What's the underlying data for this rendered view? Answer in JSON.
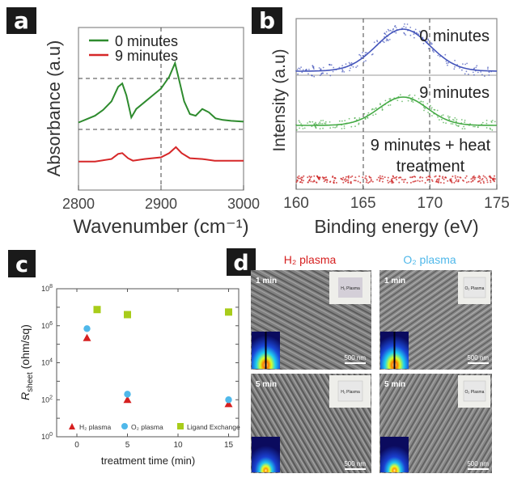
{
  "panels": {
    "a": {
      "letter": "a"
    },
    "b": {
      "letter": "b"
    },
    "c": {
      "letter": "c"
    },
    "d": {
      "letter": "d"
    }
  },
  "chart_data": [
    {
      "id": "a",
      "type": "line",
      "xlabel": "Wavenumber (cm⁻¹)",
      "ylabel": "Absorbance (a.u)",
      "xlim": [
        2800,
        3000
      ],
      "xticks": [
        2800,
        2900,
        3000
      ],
      "legend": {
        "placement": "top-left",
        "entries": [
          "0 minutes",
          "9 minutes"
        ]
      },
      "series": [
        {
          "name": "0 minutes",
          "color": "#2e8b2e",
          "x": [
            2800,
            2810,
            2820,
            2830,
            2840,
            2848,
            2853,
            2858,
            2864,
            2870,
            2880,
            2890,
            2900,
            2910,
            2917,
            2922,
            2928,
            2935,
            2942,
            2950,
            2958,
            2966,
            2975,
            2985,
            3000
          ],
          "y": [
            0.3,
            0.34,
            0.38,
            0.45,
            0.55,
            0.72,
            0.76,
            0.62,
            0.36,
            0.46,
            0.54,
            0.62,
            0.7,
            0.84,
            1.0,
            0.8,
            0.55,
            0.4,
            0.38,
            0.46,
            0.42,
            0.35,
            0.33,
            0.32,
            0.31
          ]
        },
        {
          "name": "9 minutes",
          "color": "#d62728",
          "x": [
            2800,
            2820,
            2840,
            2848,
            2853,
            2860,
            2866,
            2880,
            2900,
            2910,
            2918,
            2925,
            2935,
            2950,
            2965,
            2980,
            3000
          ],
          "y": [
            0.05,
            0.05,
            0.08,
            0.14,
            0.15,
            0.09,
            0.06,
            0.08,
            0.1,
            0.15,
            0.22,
            0.15,
            0.09,
            0.08,
            0.06,
            0.06,
            0.06
          ]
        }
      ]
    },
    {
      "id": "b",
      "type": "scatter",
      "xlabel": "Binding energy (eV)",
      "ylabel": "Intensity (a.u)",
      "xlim": [
        160,
        175
      ],
      "xticks": [
        160,
        165,
        170,
        175
      ],
      "annotations": [
        "0 minutes",
        "9 minutes",
        "9 minutes + heat",
        "treatment"
      ],
      "series": [
        {
          "name": "0 minutes",
          "color": "#4455bb",
          "fit_center": 168,
          "fit_width": 2.0
        },
        {
          "name": "9 minutes",
          "color": "#44aa44",
          "fit_center": 168,
          "fit_width": 1.8
        },
        {
          "name": "9 minutes + heat treatment",
          "color": "#cc2222"
        }
      ]
    },
    {
      "id": "c",
      "type": "scatter",
      "xlabel": "treatment time (min)",
      "ylabel": "R",
      "ylabel_sub": "sheet",
      "ylabel_unit": " (ohm/sq)",
      "xlim": [
        -2,
        16
      ],
      "ylim": [
        1,
        100000000
      ],
      "yscale": "log",
      "xticks": [
        0,
        5,
        10,
        15
      ],
      "yticks": [
        {
          "base": "10",
          "exp": "0"
        },
        {
          "base": "10",
          "exp": "2"
        },
        {
          "base": "10",
          "exp": "4"
        },
        {
          "base": "10",
          "exp": "6"
        },
        {
          "base": "10",
          "exp": "8"
        }
      ],
      "legend": {
        "placement": "bottom",
        "entries": [
          {
            "name": "H₂ plasma",
            "color": "#d62020",
            "marker": "triangle"
          },
          {
            "name": "O₂ plasma",
            "color": "#4fb8ea",
            "marker": "circle"
          },
          {
            "name": "Ligand Exchange",
            "color": "#a8cc1a",
            "marker": "square"
          }
        ]
      },
      "series": [
        {
          "name": "H₂ plasma",
          "x": [
            1,
            5,
            15
          ],
          "y": [
            220000,
            100,
            60
          ]
        },
        {
          "name": "O₂ plasma",
          "x": [
            1,
            5,
            15
          ],
          "y": [
            700000,
            200,
            100
          ]
        },
        {
          "name": "Ligand Exchange",
          "x": [
            2,
            5,
            15
          ],
          "y": [
            7500000,
            4000000,
            5500000
          ]
        }
      ]
    }
  ],
  "panel_d": {
    "columns": [
      {
        "title": "H₂ plasma",
        "color": "#d62020"
      },
      {
        "title": "O₂ plasma",
        "color": "#4fb8ea"
      }
    ],
    "images": [
      {
        "time": "1 min",
        "badge": "H₂ Plasma",
        "scale": "500 nm"
      },
      {
        "time": "1 min",
        "badge": "O₂ Plasma",
        "scale": "500 nm"
      },
      {
        "time": "5 min",
        "badge": "H₂ Plasma",
        "scale": "500 nm"
      },
      {
        "time": "5 min",
        "badge": "O₂ Plasma",
        "scale": "500 nm"
      }
    ]
  }
}
